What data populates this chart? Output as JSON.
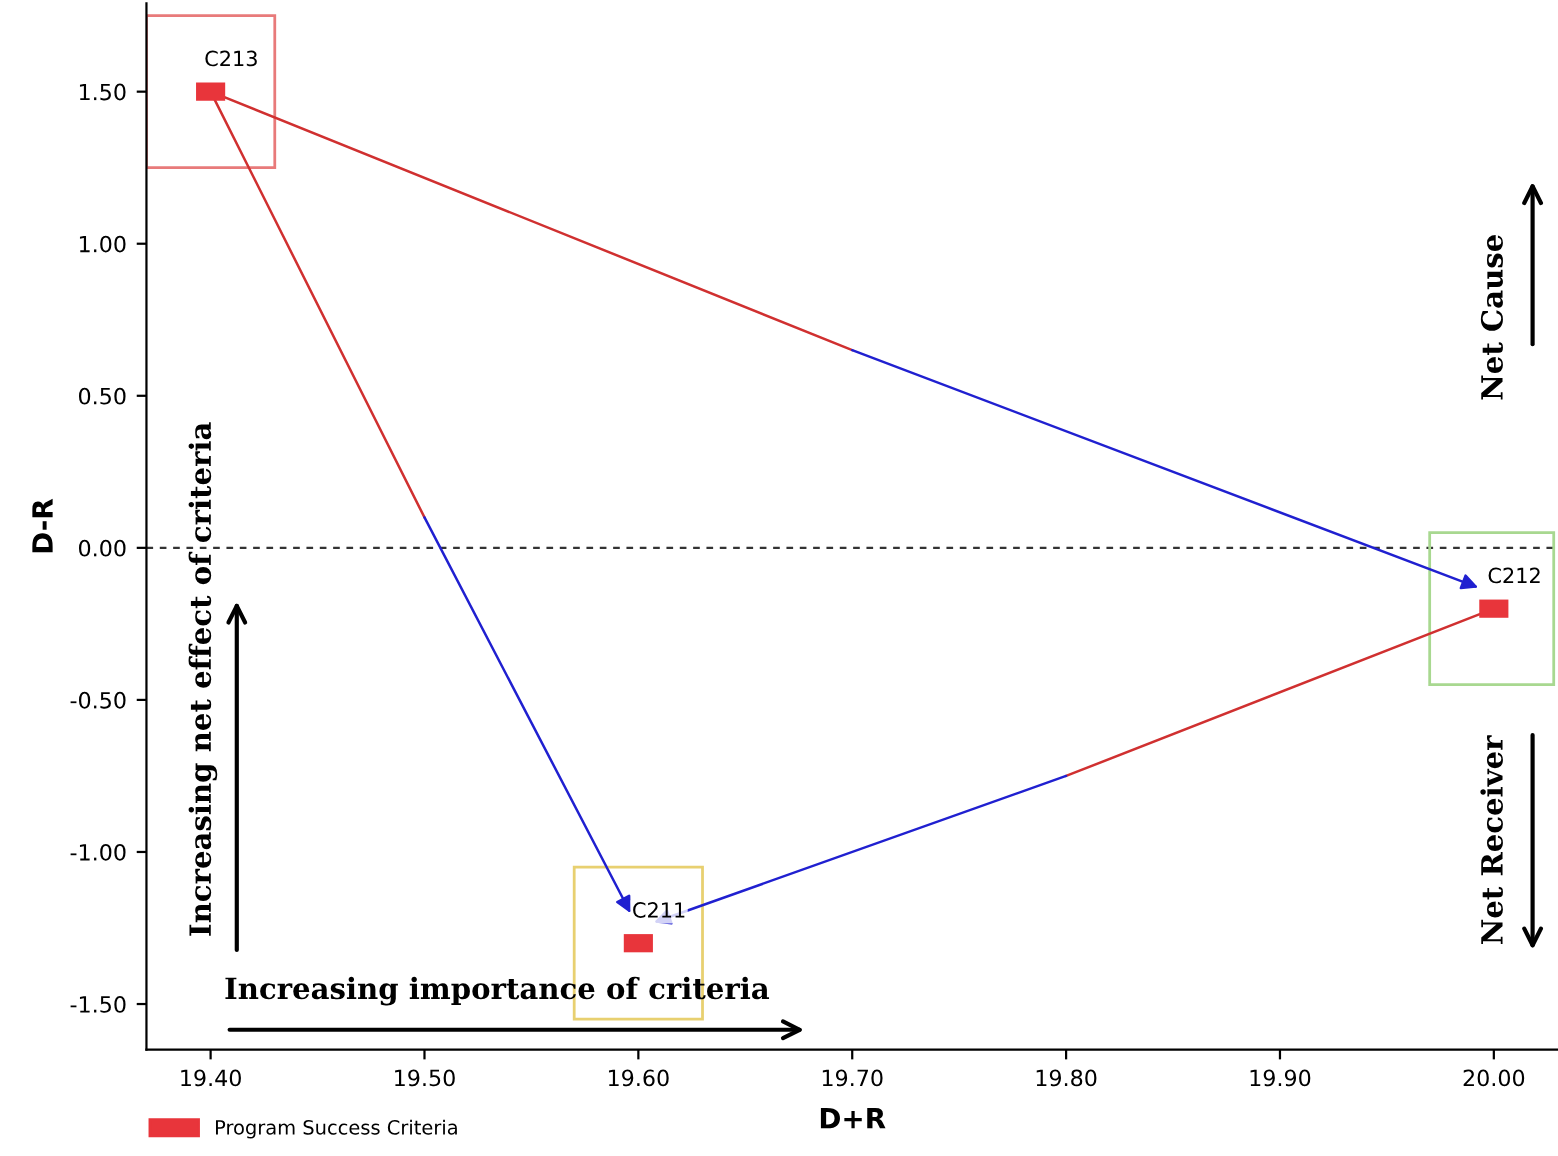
{
  "chart_data": {
    "type": "scatter",
    "xlabel": "D+R",
    "ylabel": "D-R",
    "x": [
      19.4,
      19.6,
      20.0
    ],
    "series": [
      {
        "name": "Program Success Criteria",
        "color": "#e8353b",
        "values": [
          1.5,
          -1.3,
          -0.2
        ]
      }
    ],
    "marker": "square",
    "xlim": [
      19.37,
      20.03
    ],
    "ylim": [
      -1.65,
      1.79
    ],
    "xticks": [
      {
        "value": 19.4,
        "label": "19.40"
      },
      {
        "value": 19.5,
        "label": "19.50"
      },
      {
        "value": 19.6,
        "label": "19.60"
      },
      {
        "value": 19.7,
        "label": "19.70"
      },
      {
        "value": 19.8,
        "label": "19.80"
      },
      {
        "value": 19.9,
        "label": "19.90"
      },
      {
        "value": 20.0,
        "label": "20.00"
      }
    ],
    "yticks": [
      {
        "value": -1.5,
        "label": "-1.50"
      },
      {
        "value": -1.0,
        "label": "-1.00"
      },
      {
        "value": -0.5,
        "label": "-0.50"
      },
      {
        "value": 0.0,
        "label": "0.00"
      },
      {
        "value": 0.5,
        "label": "0.50"
      },
      {
        "value": 1.0,
        "label": "1.00"
      },
      {
        "value": 1.5,
        "label": "1.50"
      }
    ],
    "ref_lines": [
      {
        "axis": "y",
        "value": 0.0,
        "color": "#333333",
        "line_style": "dashed"
      }
    ],
    "annotations": [
      {
        "text": "C213",
        "x": 19.4,
        "y": 1.5
      },
      {
        "text": "C211",
        "x": 19.6,
        "y": -1.3
      },
      {
        "text": "C212",
        "x": 20.0,
        "y": -0.2
      },
      "Net Cause",
      "Net Receiver",
      "Increasing net effect of criteria",
      "Increasing importance of criteria"
    ],
    "grid": false,
    "legend": "bottom left"
  }
}
